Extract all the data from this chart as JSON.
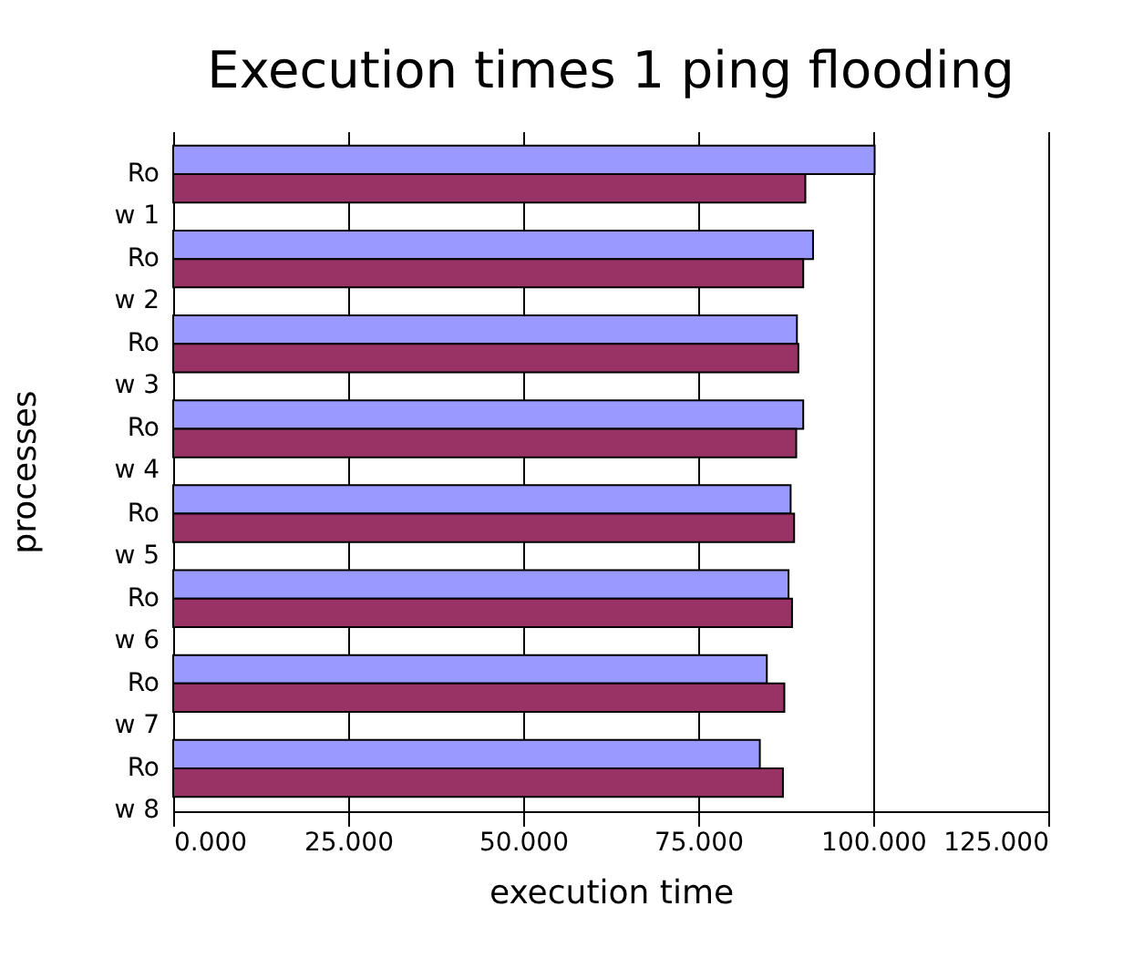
{
  "chart_data": {
    "type": "bar",
    "orientation": "horizontal",
    "title": "Execution times 1 ping flooding",
    "xlabel": "execution time",
    "ylabel": "processes",
    "categories": [
      "Row 1",
      "Row 2",
      "Row 3",
      "Row 4",
      "Row 5",
      "Row 6",
      "Row 7",
      "Row 8"
    ],
    "series": [
      {
        "color": "#9999ff",
        "values": [
          100.2,
          91.4,
          89.1,
          90.0,
          88.2,
          87.9,
          84.8,
          83.8
        ]
      },
      {
        "color": "#993366",
        "values": [
          90.3,
          90.0,
          89.3,
          89.0,
          88.7,
          88.4,
          87.3,
          87.1
        ]
      }
    ],
    "xlim": [
      0,
      125
    ],
    "xticks": [
      {
        "value": 0,
        "label": "0.000"
      },
      {
        "value": 25,
        "label": "25.000"
      },
      {
        "value": 50,
        "label": "50.000"
      },
      {
        "value": 75,
        "label": "75.000"
      },
      {
        "value": 100,
        "label": "100.000"
      },
      {
        "value": 125,
        "label": "125.000"
      }
    ],
    "grid": "x",
    "legend": false
  }
}
